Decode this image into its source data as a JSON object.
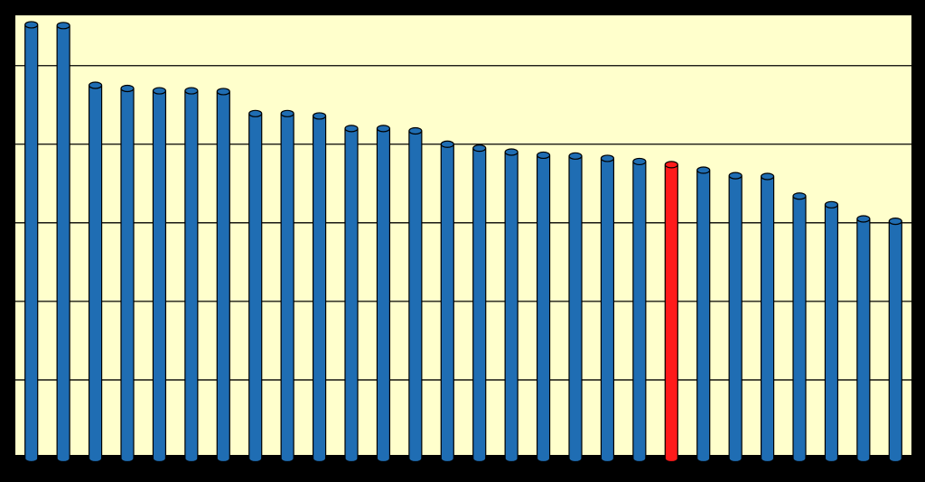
{
  "chart_data": {
    "type": "bar",
    "categories": [
      null,
      null,
      null,
      null,
      null,
      null,
      null,
      null,
      null,
      null,
      null,
      null,
      null,
      null,
      null,
      null,
      null,
      null,
      null,
      null,
      null,
      null,
      null,
      null,
      null,
      null,
      null,
      null
    ],
    "values": [
      5.52,
      5.51,
      4.75,
      4.71,
      4.68,
      4.68,
      4.67,
      4.39,
      4.39,
      4.36,
      4.2,
      4.2,
      4.17,
      4.0,
      3.95,
      3.9,
      3.86,
      3.85,
      3.82,
      3.78,
      3.74,
      3.67,
      3.6,
      3.59,
      3.34,
      3.23,
      3.05,
      3.02
    ],
    "colors": [
      "#1f6db3",
      "#1f6db3",
      "#1f6db3",
      "#1f6db3",
      "#1f6db3",
      "#1f6db3",
      "#1f6db3",
      "#1f6db3",
      "#1f6db3",
      "#1f6db3",
      "#1f6db3",
      "#1f6db3",
      "#1f6db3",
      "#1f6db3",
      "#1f6db3",
      "#1f6db3",
      "#1f6db3",
      "#1f6db3",
      "#1f6db3",
      "#1f6db3",
      "#ff1a1a",
      "#1f6db3",
      "#1f6db3",
      "#1f6db3",
      "#1f6db3",
      "#1f6db3",
      "#1f6db3",
      "#1f6db3"
    ],
    "ylim": [
      0,
      5.64
    ],
    "yticks": [
      0,
      1,
      2,
      3,
      4,
      5
    ],
    "grid": true
  }
}
